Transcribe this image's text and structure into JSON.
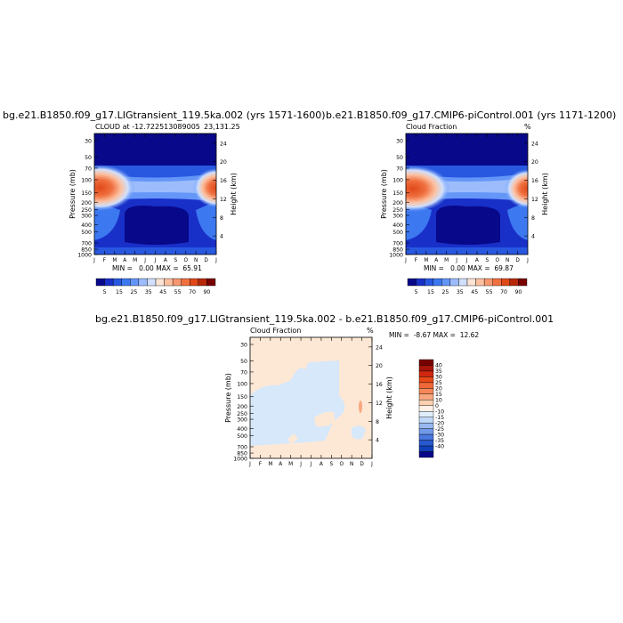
{
  "panels": [
    {
      "title": "bg.e21.B1850.f09_g17.LIGtransient_119.5ka.002 (yrs 1571-1600)",
      "left_title": "CLOUD at -12.722513089005",
      "right_title": "23,131.25",
      "min_max": "MIN =   0.00 MAX =  65.91",
      "colorbar_labels": [
        "5",
        "15",
        "25",
        "35",
        "45",
        "55",
        "70",
        "90"
      ]
    },
    {
      "title": "b.e21.B1850.f09_g17.CMIP6-piControl.001 (yrs 1171-1200)",
      "left_title": "Cloud Fraction",
      "right_title": "%",
      "min_max": "MIN =   0.00 MAX =  69.87",
      "colorbar_labels": [
        "5",
        "15",
        "25",
        "35",
        "45",
        "55",
        "70",
        "90"
      ]
    },
    {
      "title": "bg.e21.B1850.f09_g17.LIGtransient_119.5ka.002 - b.e21.B1850.f09_g17.CMIP6-piControl.001",
      "left_title": "Cloud Fraction",
      "right_title": "%",
      "min_max": "MIN =  -8.67 MAX =  12.62",
      "colorbar_labels": [
        "40",
        "35",
        "30",
        "25",
        "20",
        "15",
        "10",
        "0",
        "-10",
        "-15",
        "-20",
        "-25",
        "-30",
        "-35",
        "-40"
      ]
    }
  ],
  "axes": {
    "ylabel_left": "Pressure (mb)",
    "ylabel_right": "Height (km)",
    "pressure_ticks": [
      "30",
      "50",
      "70",
      "100",
      "150",
      "200",
      "250",
      "300",
      "400",
      "500",
      "700",
      "850",
      "1000"
    ],
    "height_ticks": [
      "24",
      "20",
      "16",
      "12",
      "8",
      "4"
    ],
    "month_ticks": [
      "J",
      "F",
      "M",
      "A",
      "M",
      "J",
      "J",
      "A",
      "S",
      "O",
      "N",
      "D",
      "J"
    ]
  },
  "colors": {
    "abs_scale": [
      "#08088a",
      "#1830c8",
      "#2858e0",
      "#3c78f0",
      "#6496f8",
      "#9cbcfc",
      "#d0e0fc",
      "#fce4d4",
      "#fcc0a0",
      "#f89870",
      "#f07040",
      "#e04818",
      "#b82808",
      "#780000"
    ],
    "diff_scale": [
      "#780000",
      "#a81408",
      "#d02810",
      "#e84818",
      "#f06838",
      "#f48858",
      "#f8a880",
      "#fcd0b0",
      "#fef0e4",
      "#e0eefc",
      "#c0d8f8",
      "#98b8f0",
      "#7098e8",
      "#4878e0",
      "#2858d0",
      "#1040b8",
      "#08088a"
    ],
    "diff_pos": "#fde8d6",
    "diff_neg": "#d6e8fa"
  },
  "chart_data": [
    {
      "type": "heatmap",
      "title": "bg.e21.B1850.f09_g17.LIGtransient_119.5ka.002 (yrs 1571-1600)",
      "variable": "CLOUD",
      "x": [
        "J",
        "F",
        "M",
        "A",
        "M",
        "J",
        "J",
        "A",
        "S",
        "O",
        "N",
        "D",
        "J"
      ],
      "y_pressure_mb": [
        30,
        50,
        70,
        100,
        150,
        200,
        250,
        300,
        400,
        500,
        700,
        850,
        1000
      ],
      "min": 0.0,
      "max": 65.91,
      "levels": [
        5,
        15,
        25,
        35,
        45,
        55,
        70,
        90
      ]
    },
    {
      "type": "heatmap",
      "title": "b.e21.B1850.f09_g17.CMIP6-piControl.001 (yrs 1171-1200)",
      "variable": "Cloud Fraction",
      "x": [
        "J",
        "F",
        "M",
        "A",
        "M",
        "J",
        "J",
        "A",
        "S",
        "O",
        "N",
        "D",
        "J"
      ],
      "y_pressure_mb": [
        30,
        50,
        70,
        100,
        150,
        200,
        250,
        300,
        400,
        500,
        700,
        850,
        1000
      ],
      "min": 0.0,
      "max": 69.87,
      "levels": [
        5,
        15,
        25,
        35,
        45,
        55,
        70,
        90
      ]
    },
    {
      "type": "heatmap",
      "title": "bg.e21.B1850.f09_g17.LIGtransient_119.5ka.002 - b.e21.B1850.f09_g17.CMIP6-piControl.001",
      "variable": "Cloud Fraction",
      "x": [
        "J",
        "F",
        "M",
        "A",
        "M",
        "J",
        "J",
        "A",
        "S",
        "O",
        "N",
        "D",
        "J"
      ],
      "y_pressure_mb": [
        30,
        50,
        70,
        100,
        150,
        200,
        250,
        300,
        400,
        500,
        700,
        850,
        1000
      ],
      "min": -8.67,
      "max": 12.62,
      "levels": [
        -40,
        -35,
        -30,
        -25,
        -20,
        -15,
        -10,
        0,
        10,
        15,
        20,
        25,
        30,
        35,
        40
      ]
    }
  ]
}
